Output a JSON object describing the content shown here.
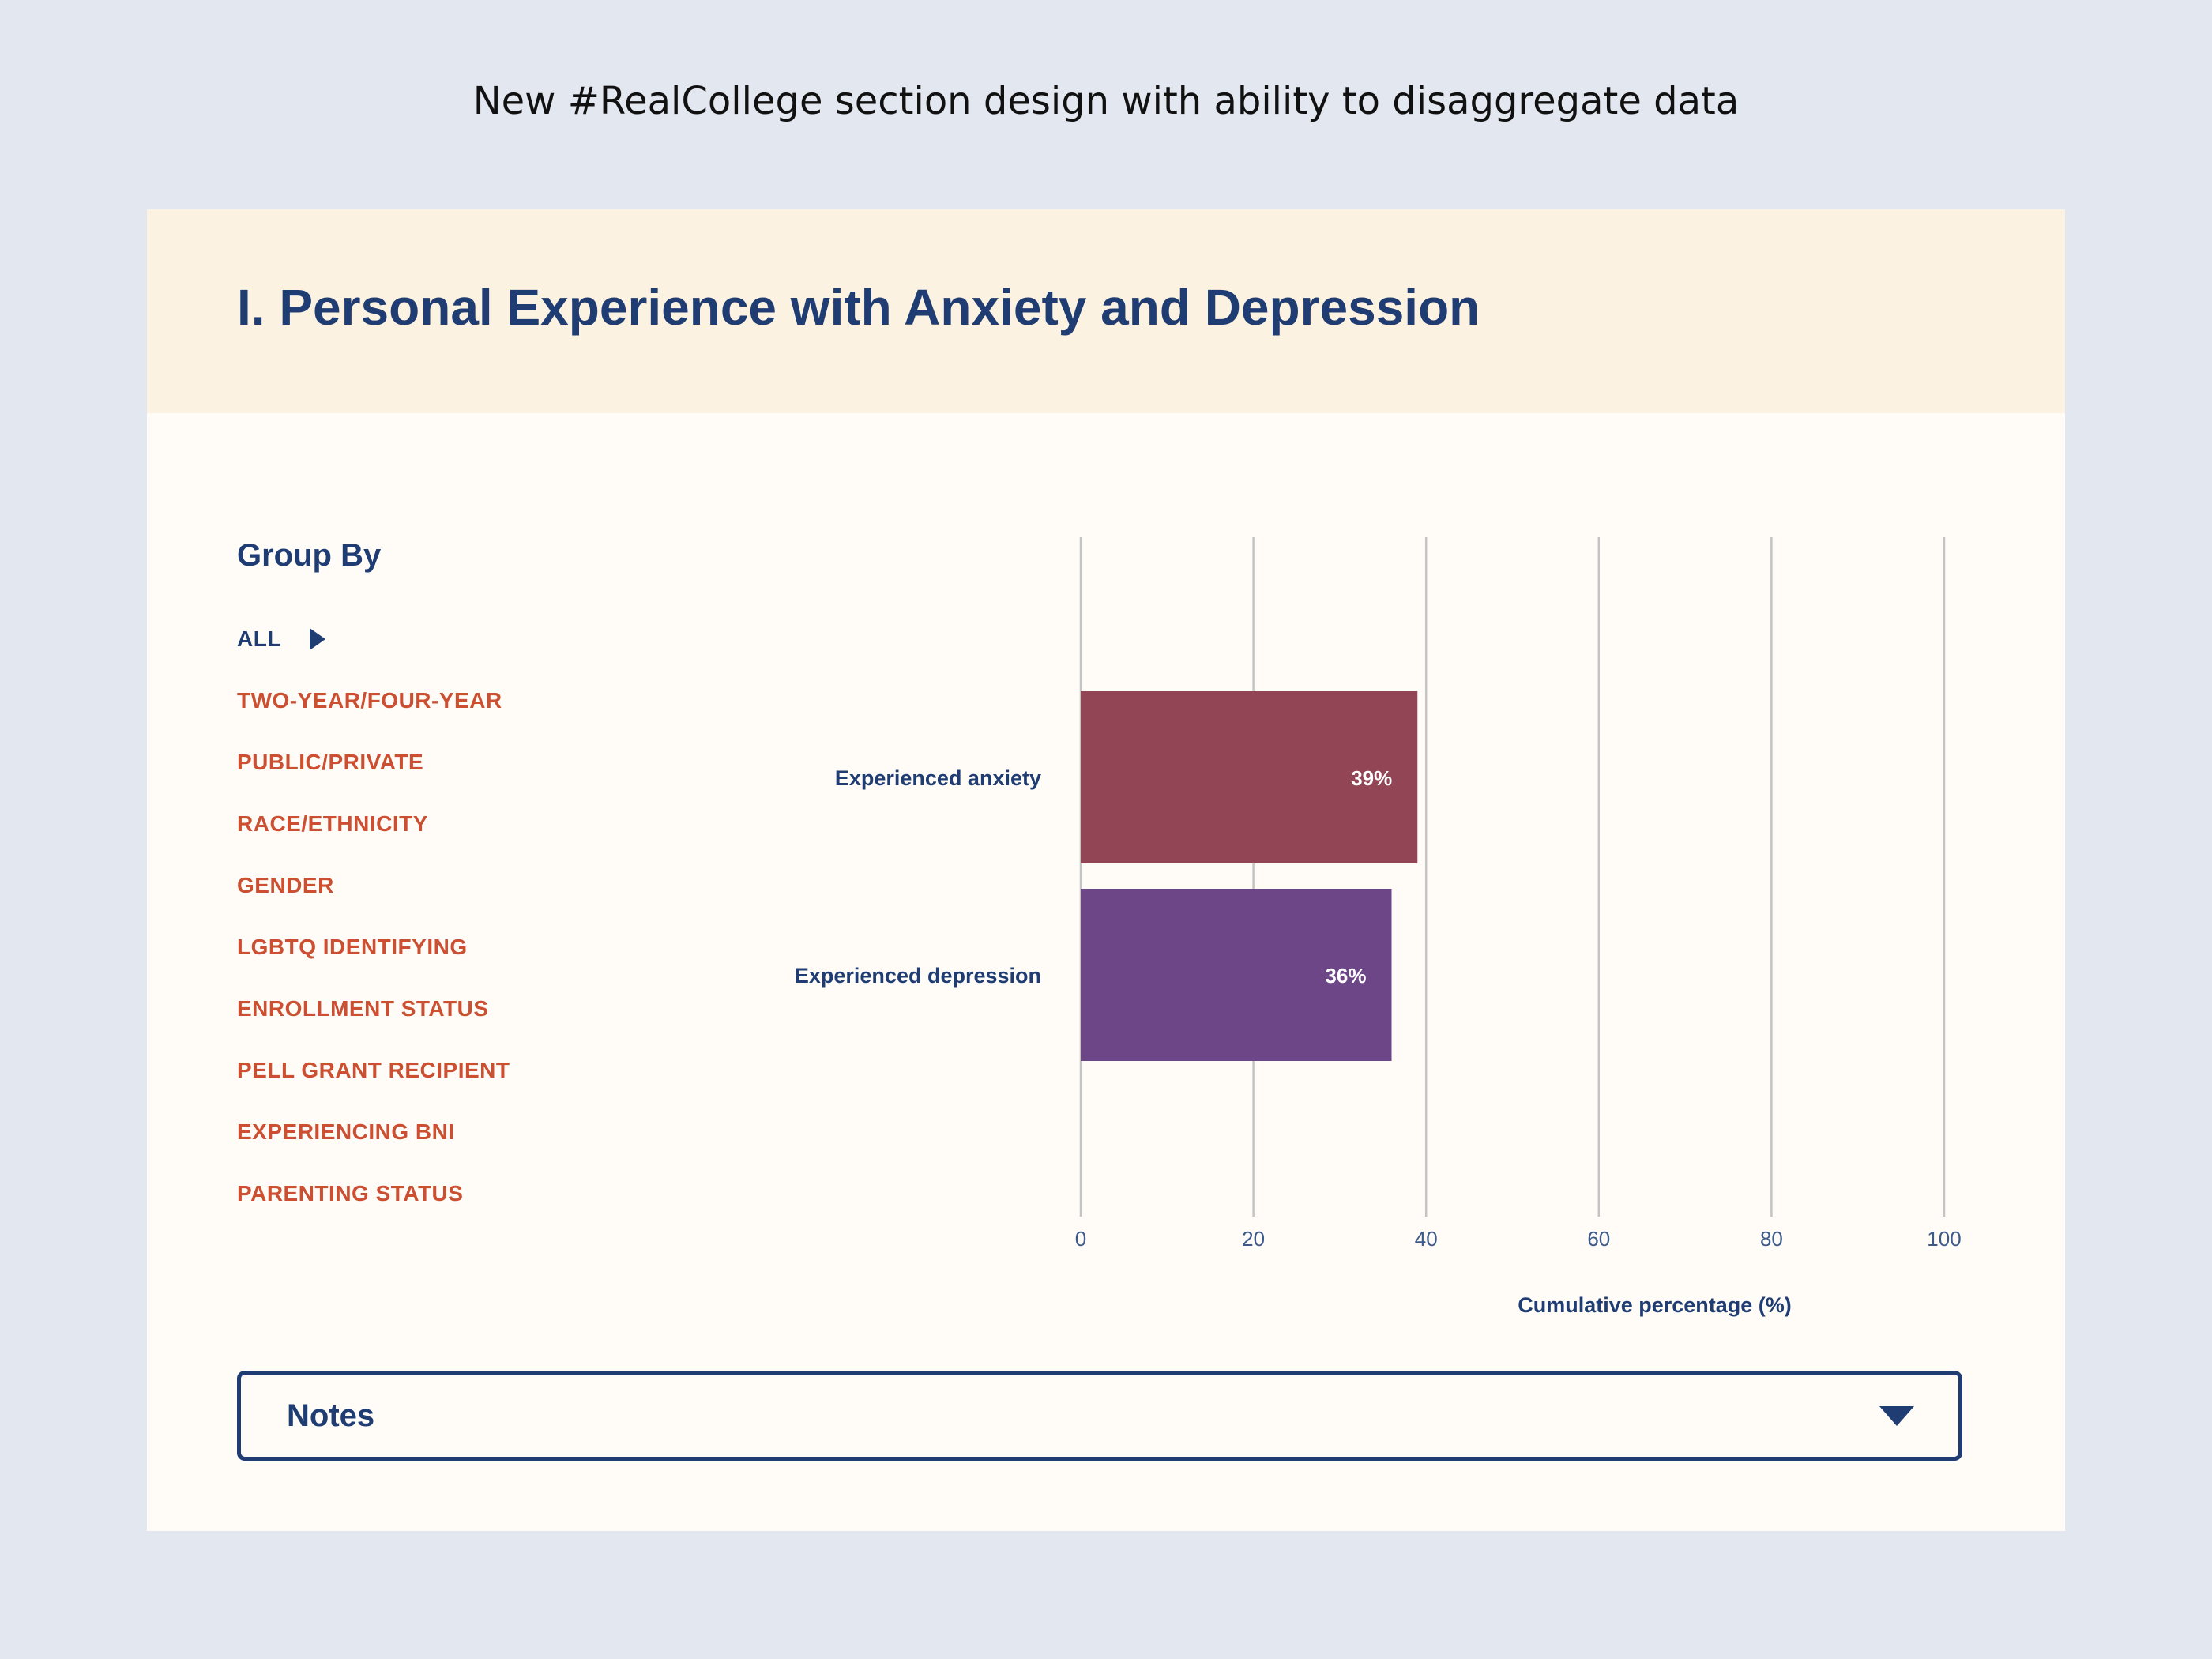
{
  "caption": "New #RealCollege section design with ability to disaggregate data",
  "section": {
    "title": "I. Personal Experience with Anxiety and Depression"
  },
  "group_by": {
    "title": "Group By",
    "items": [
      {
        "label": "ALL",
        "active": true
      },
      {
        "label": "TWO-YEAR/FOUR-YEAR",
        "active": false
      },
      {
        "label": "PUBLIC/PRIVATE",
        "active": false
      },
      {
        "label": "RACE/ETHNICITY",
        "active": false
      },
      {
        "label": "GENDER",
        "active": false
      },
      {
        "label": "LGBTQ IDENTIFYING",
        "active": false
      },
      {
        "label": "ENROLLMENT STATUS",
        "active": false
      },
      {
        "label": "PELL GRANT RECIPIENT",
        "active": false
      },
      {
        "label": "EXPERIENCING BNI",
        "active": false
      },
      {
        "label": "PARENTING STATUS",
        "active": false
      }
    ],
    "active_color": "#1f3d72",
    "inactive_color": "#cc4f31"
  },
  "chart_data": {
    "type": "bar",
    "orientation": "horizontal",
    "categories": [
      "Experienced anxiety",
      "Experienced depression"
    ],
    "values": [
      39,
      36
    ],
    "value_labels": [
      "39%",
      "36%"
    ],
    "bar_colors": [
      "#914555",
      "#6c4687"
    ],
    "xlabel": "Cumulative percentage (%)",
    "ylabel": "",
    "xlim": [
      0,
      100
    ],
    "xticks": [
      0,
      20,
      40,
      60,
      80,
      100
    ],
    "grid": true
  },
  "notes": {
    "label": "Notes"
  },
  "colors": {
    "page_bg": "#e3e7f0",
    "card_bg": "#fffcf8",
    "header_bg": "#fcf2e1",
    "navy": "#1f3d72"
  }
}
